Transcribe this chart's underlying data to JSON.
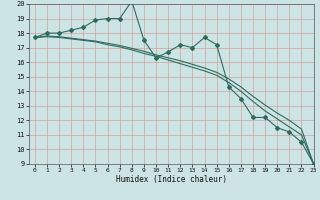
{
  "xlabel": "Humidex (Indice chaleur)",
  "ylabel": "",
  "background_color": "#cde4e4",
  "grid_color": "#b8d4d4",
  "line_color": "#2d6b5e",
  "x": [
    0,
    1,
    2,
    3,
    4,
    5,
    6,
    7,
    8,
    9,
    10,
    11,
    12,
    13,
    14,
    15,
    16,
    17,
    18,
    19,
    20,
    21,
    22,
    23
  ],
  "y_main": [
    17.7,
    18.0,
    18.0,
    18.2,
    18.4,
    18.9,
    19.0,
    19.0,
    20.2,
    17.5,
    16.3,
    16.7,
    17.2,
    17.0,
    17.7,
    17.2,
    14.3,
    13.5,
    12.2,
    12.2,
    11.5,
    11.2,
    10.5,
    9.0
  ],
  "y_line1": [
    17.7,
    17.75,
    17.7,
    17.6,
    17.5,
    17.4,
    17.2,
    17.05,
    16.85,
    16.6,
    16.4,
    16.15,
    15.9,
    15.65,
    15.4,
    15.1,
    14.6,
    14.0,
    13.3,
    12.65,
    12.1,
    11.55,
    11.0,
    9.0
  ],
  "y_line2": [
    17.7,
    17.8,
    17.75,
    17.65,
    17.55,
    17.45,
    17.3,
    17.15,
    16.95,
    16.75,
    16.5,
    16.3,
    16.1,
    15.85,
    15.6,
    15.3,
    14.85,
    14.3,
    13.65,
    13.05,
    12.5,
    12.0,
    11.4,
    9.0
  ],
  "ylim": [
    9,
    20
  ],
  "xlim": [
    -0.5,
    23
  ],
  "yticks": [
    9,
    10,
    11,
    12,
    13,
    14,
    15,
    16,
    17,
    18,
    19,
    20
  ],
  "xticks": [
    0,
    1,
    2,
    3,
    4,
    5,
    6,
    7,
    8,
    9,
    10,
    11,
    12,
    13,
    14,
    15,
    16,
    17,
    18,
    19,
    20,
    21,
    22,
    23
  ]
}
